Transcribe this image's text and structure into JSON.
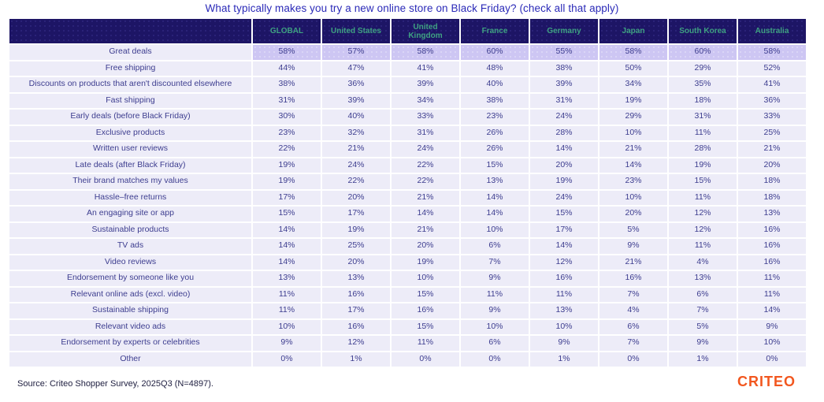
{
  "title": "What typically makes you try a new online store on Black Friday? (check all that apply)",
  "source_note": "Source: Criteo Shopper Survey, 2025Q3 (N=4897).",
  "brand": {
    "logo_text": "CRITEO",
    "logo_color": "#f2571f"
  },
  "colors": {
    "header_bg": "#1d1565",
    "header_text_green": "#3fa182",
    "title_blue": "#2b2ab8",
    "cell_bg": "#edecf8",
    "highlight_bg": "#cdc6f3",
    "cell_text": "#3d3d8f",
    "source_text": "#212142"
  },
  "chart_data": {
    "type": "table",
    "title": "What typically makes you try a new online store on Black Friday? (check all that apply)",
    "value_format": "percent",
    "columns": [
      "GLOBAL",
      "United States",
      "United Kingdom",
      "France",
      "Germany",
      "Japan",
      "South Korea",
      "Australia"
    ],
    "rows": [
      {
        "label": "Great deals",
        "values": [
          58,
          57,
          58,
          60,
          55,
          58,
          60,
          58
        ],
        "highlight": true
      },
      {
        "label": "Free shipping",
        "values": [
          44,
          47,
          41,
          48,
          38,
          50,
          29,
          52
        ]
      },
      {
        "label": "Discounts on products that aren't discounted elsewhere",
        "values": [
          38,
          36,
          39,
          40,
          39,
          34,
          35,
          41
        ]
      },
      {
        "label": "Fast shipping",
        "values": [
          31,
          39,
          34,
          38,
          31,
          19,
          18,
          36
        ]
      },
      {
        "label": "Early deals (before Black Friday)",
        "values": [
          30,
          40,
          33,
          23,
          24,
          29,
          31,
          33
        ]
      },
      {
        "label": "Exclusive products",
        "values": [
          23,
          32,
          31,
          26,
          28,
          10,
          11,
          25
        ]
      },
      {
        "label": "Written user reviews",
        "values": [
          22,
          21,
          24,
          26,
          14,
          21,
          28,
          21
        ]
      },
      {
        "label": "Late deals (after Black Friday)",
        "values": [
          19,
          24,
          22,
          15,
          20,
          14,
          19,
          20
        ]
      },
      {
        "label": "Their brand matches my values",
        "values": [
          19,
          22,
          22,
          13,
          19,
          23,
          15,
          18
        ]
      },
      {
        "label": "Hassle–free returns",
        "values": [
          17,
          20,
          21,
          14,
          24,
          10,
          11,
          18
        ]
      },
      {
        "label": "An engaging site or app",
        "values": [
          15,
          17,
          14,
          14,
          15,
          20,
          12,
          13
        ]
      },
      {
        "label": "Sustainable products",
        "values": [
          14,
          19,
          21,
          10,
          17,
          5,
          12,
          16
        ]
      },
      {
        "label": "TV ads",
        "values": [
          14,
          25,
          20,
          6,
          14,
          9,
          11,
          16
        ]
      },
      {
        "label": "Video reviews",
        "values": [
          14,
          20,
          19,
          7,
          12,
          21,
          4,
          16
        ]
      },
      {
        "label": "Endorsement by someone like you",
        "values": [
          13,
          13,
          10,
          9,
          16,
          16,
          13,
          11
        ]
      },
      {
        "label": "Relevant online ads (excl. video)",
        "values": [
          11,
          16,
          15,
          11,
          11,
          7,
          6,
          11
        ]
      },
      {
        "label": "Sustainable shipping",
        "values": [
          11,
          17,
          16,
          9,
          13,
          4,
          7,
          14
        ]
      },
      {
        "label": "Relevant video ads",
        "values": [
          10,
          16,
          15,
          10,
          10,
          6,
          5,
          9
        ]
      },
      {
        "label": "Endorsement by experts or celebrities",
        "values": [
          9,
          12,
          11,
          6,
          9,
          7,
          9,
          10
        ]
      },
      {
        "label": "Other",
        "values": [
          0,
          1,
          0,
          0,
          1,
          0,
          1,
          0
        ]
      }
    ],
    "source": "Source: Criteo Shopper Survey, 2025Q3 (N=4897).",
    "legend_position": "none",
    "grid": false
  }
}
